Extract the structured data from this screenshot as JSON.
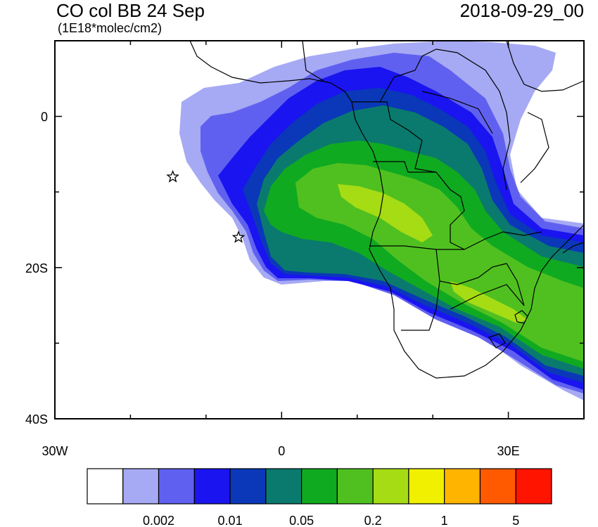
{
  "map": {
    "title": "CO col BB 24 Sep",
    "date": "2018-09-29_00",
    "units": "(1E18*molec/cm2)",
    "x_ticks": [
      {
        "label": "30W",
        "lon": -30
      },
      {
        "label": "0",
        "lon": 0
      },
      {
        "label": "30E",
        "lon": 30
      }
    ],
    "y_ticks": [
      {
        "label": "0",
        "lat": 0
      },
      {
        "label": "20S",
        "lat": -20
      },
      {
        "label": "40S",
        "lat": -40
      }
    ],
    "extent": {
      "lon": [
        -30,
        40
      ],
      "lat": [
        -40,
        10
      ]
    },
    "markers": [
      {
        "name": "star-1",
        "lon": -14.4,
        "lat": -8.0
      },
      {
        "name": "star-2",
        "lon": -5.7,
        "lat": -16.0
      }
    ]
  },
  "colorbar": {
    "colors": [
      "#ffffff",
      "#a6aaf4",
      "#6060f0",
      "#1a14f0",
      "#0a38b8",
      "#0a7a6e",
      "#10aa20",
      "#50c020",
      "#a6dc14",
      "#f0f000",
      "#ffb400",
      "#ff5a00",
      "#ff1400"
    ],
    "labels": [
      {
        "text": "0.002",
        "boundary": 2
      },
      {
        "text": "0.01",
        "boundary": 4
      },
      {
        "text": "0.05",
        "boundary": 6
      },
      {
        "text": "0.2",
        "boundary": 8
      },
      {
        "text": "1",
        "boundary": 10
      },
      {
        "text": "5",
        "boundary": 12
      }
    ]
  }
}
